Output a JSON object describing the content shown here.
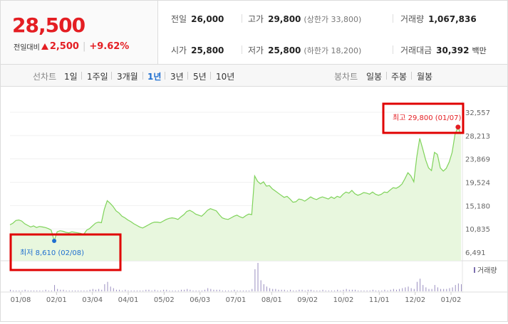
{
  "summary": {
    "price": "28,500",
    "change_label": "전일대비",
    "change_amount": "2,500",
    "change_rate": "+9.62%",
    "stats": [
      {
        "key": "전일",
        "value": "26,000",
        "sub": ""
      },
      {
        "key": "고가",
        "value": "29,800",
        "sub": "(상한가 33,800)"
      },
      {
        "key": "거래량",
        "value": "1,067,836",
        "sub": ""
      },
      {
        "key": "시가",
        "value": "25,800",
        "sub": ""
      },
      {
        "key": "저가",
        "value": "25,800",
        "sub": "(하한가 18,200)"
      },
      {
        "key": "거래대금",
        "value": "30,392",
        "sub": "백만"
      }
    ]
  },
  "rangebar": {
    "line_label": "선차트",
    "line_ranges": [
      "1일",
      "1주일",
      "3개월",
      "1년",
      "3년",
      "5년",
      "10년"
    ],
    "active_range": "1년",
    "candle_label": "봉차트",
    "candle_ranges": [
      "일봉",
      "주봉",
      "월봉"
    ]
  },
  "colors": {
    "up": "#e41e23",
    "down": "#1f6fd0",
    "line": "#7fd35a",
    "fill": "#e8f7de",
    "volume": "#9a8fc0"
  },
  "annotations": {
    "high": "최고 29,800 (01/07)",
    "low": "최저 8,610 (02/08)"
  },
  "chart_data": {
    "type": "area",
    "ylim": [
      6491,
      32557
    ],
    "y_ticks": [
      "32,557",
      "28,213",
      "23,869",
      "19,524",
      "15,180",
      "10,835",
      "6,491"
    ],
    "x_ticks": [
      "01/08",
      "02/01",
      "03/04",
      "04/01",
      "05/02",
      "06/03",
      "07/01",
      "08/01",
      "09/02",
      "10/02",
      "11/01",
      "12/02",
      "01/02"
    ],
    "volume_legend": "거래량",
    "series": [
      {
        "values": [
          11600,
          11900,
          12400,
          12500,
          12300,
          11800,
          11500,
          11200,
          11400,
          11100,
          11300,
          11200,
          11100,
          10900,
          10600,
          8610,
          10300,
          10500,
          10400,
          10200,
          10100,
          10300,
          10200,
          10100,
          10000,
          9800,
          10600,
          10900,
          11400,
          11900,
          12100,
          12000,
          14500,
          16100,
          15600,
          15000,
          14200,
          13800,
          13200,
          12900,
          12500,
          12200,
          11800,
          11500,
          11200,
          11000,
          11300,
          11600,
          11900,
          12100,
          12100,
          12000,
          12300,
          12600,
          12800,
          12900,
          12800,
          12600,
          13100,
          13500,
          14100,
          14300,
          14000,
          13600,
          13400,
          13200,
          13700,
          14300,
          14600,
          14400,
          14200,
          13500,
          12900,
          12700,
          12600,
          12900,
          13200,
          13400,
          13100,
          12900,
          13300,
          13600,
          13500,
          20700,
          19700,
          19200,
          19600,
          18800,
          18900,
          18300,
          17900,
          17500,
          17100,
          16700,
          16900,
          16400,
          15800,
          15900,
          16400,
          16300,
          16000,
          16400,
          16800,
          16500,
          16300,
          16600,
          16800,
          16600,
          16400,
          16800,
          16500,
          16900,
          16700,
          17300,
          17700,
          17500,
          18000,
          17400,
          17100,
          17300,
          17600,
          17500,
          17300,
          17700,
          17300,
          17100,
          17300,
          17700,
          17600,
          18100,
          18500,
          18400,
          18700,
          19200,
          20200,
          21300,
          20700,
          19600,
          24200,
          27700,
          25800,
          23700,
          22200,
          21700,
          25100,
          24700,
          22200,
          21600,
          22100,
          23300,
          25100,
          28500,
          29800,
          28500
        ]
      }
    ],
    "volume": [
      2,
      1,
      1,
      1,
      1,
      2,
      1,
      1,
      1,
      1,
      1,
      1,
      2,
      1,
      1,
      8,
      3,
      2,
      2,
      1,
      1,
      1,
      1,
      1,
      1,
      1,
      1,
      2,
      3,
      2,
      3,
      2,
      9,
      12,
      6,
      4,
      2,
      2,
      1,
      2,
      1,
      1,
      1,
      1,
      1,
      1,
      2,
      2,
      1,
      2,
      1,
      1,
      2,
      2,
      1,
      1,
      1,
      1,
      2,
      2,
      3,
      2,
      1,
      1,
      1,
      1,
      2,
      4,
      3,
      2,
      2,
      2,
      1,
      1,
      1,
      1,
      2,
      1,
      1,
      1,
      1,
      1,
      3,
      28,
      36,
      14,
      9,
      6,
      4,
      3,
      3,
      2,
      2,
      2,
      1,
      2,
      1,
      1,
      2,
      2,
      1,
      2,
      2,
      1,
      1,
      1,
      2,
      1,
      1,
      1,
      1,
      2,
      1,
      2,
      3,
      2,
      2,
      2,
      1,
      1,
      1,
      1,
      1,
      2,
      1,
      1,
      1,
      2,
      1,
      2,
      3,
      2,
      3,
      4,
      5,
      6,
      4,
      3,
      12,
      16,
      8,
      5,
      3,
      3,
      8,
      5,
      3,
      3,
      3,
      4,
      5,
      8,
      10,
      9
    ]
  }
}
